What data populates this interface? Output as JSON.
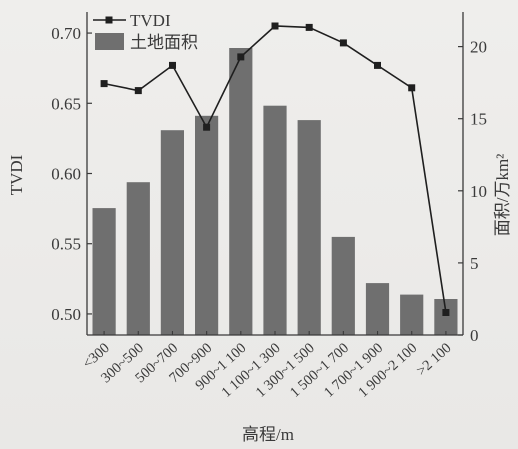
{
  "chart_data": {
    "type": "bar+line",
    "categories": [
      "<300",
      "300~500",
      "500~700",
      "700~900",
      "900~1 100",
      "1 100~1 300",
      "1 300~1 500",
      "1 500~1 700",
      "1 700~1 900",
      "1 900~2 100",
      ">2 100"
    ],
    "series": [
      {
        "name": "TVDI",
        "type": "line",
        "axis": "left",
        "values": [
          0.664,
          0.659,
          0.677,
          0.633,
          0.683,
          0.705,
          0.704,
          0.693,
          0.677,
          0.661,
          0.501
        ]
      },
      {
        "name": "土地面积",
        "type": "bar",
        "axis": "right",
        "values": [
          8.8,
          10.6,
          14.2,
          15.2,
          19.9,
          15.9,
          14.9,
          6.8,
          3.6,
          2.8,
          2.5
        ]
      }
    ],
    "xlabel": "高程/m",
    "ylabel_left": "TVDI",
    "ylabel_right": "面积/万km²",
    "ylim_left": [
      0.485,
      0.715
    ],
    "ylim_right": [
      0,
      22.4
    ],
    "yticks_left": [
      "0.50",
      "0.55",
      "0.60",
      "0.65",
      "0.70"
    ],
    "yticks_right": [
      "0",
      "5",
      "10",
      "15",
      "20"
    ],
    "legend_position": "top-left",
    "grid": false,
    "colors": {
      "bar": "#6f6f6f",
      "line": "#1f1f1f",
      "axis": "#3a3a3a",
      "background": "#eeeceb"
    }
  }
}
